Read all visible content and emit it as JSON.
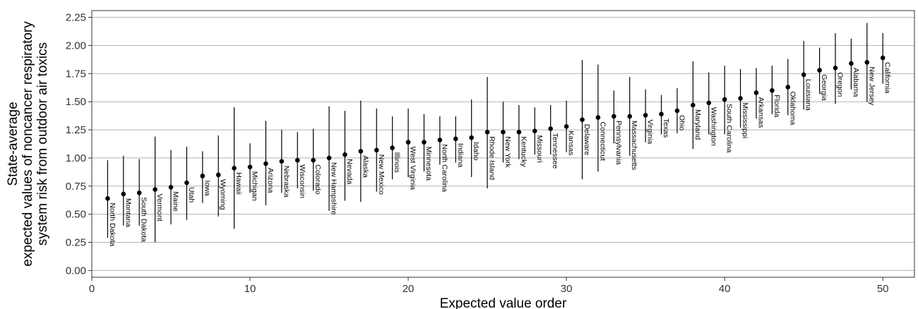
{
  "chart_data": {
    "type": "scatter",
    "subtype": "point-range",
    "xlabel": "Expected value order",
    "ylabel": [
      "State-average",
      "expected values of noncancer respiratory",
      "system risk from outdoor air toxics"
    ],
    "xlim": [
      0,
      52
    ],
    "ylim": [
      -0.06,
      2.31
    ],
    "xticks": [
      0,
      10,
      20,
      30,
      40,
      50
    ],
    "yticks": [
      "0.00",
      "0.25",
      "0.50",
      "0.75",
      "1.00",
      "1.25",
      "1.50",
      "1.75",
      "2.00",
      "2.25"
    ],
    "grid": "horizontal",
    "colors": {
      "point": "#000000",
      "line": "#000000",
      "grid": "#b3b3b3"
    },
    "points": [
      {
        "x": 1,
        "state": "North Dakota",
        "y": 0.64,
        "low": 0.29,
        "high": 0.98
      },
      {
        "x": 2,
        "state": "Montana",
        "y": 0.68,
        "low": 0.4,
        "high": 1.02
      },
      {
        "x": 3,
        "state": "South Dakota",
        "y": 0.69,
        "low": 0.4,
        "high": 0.99
      },
      {
        "x": 4,
        "state": "Vermont",
        "y": 0.72,
        "low": 0.25,
        "high": 1.19
      },
      {
        "x": 5,
        "state": "Maine",
        "y": 0.74,
        "low": 0.41,
        "high": 1.07
      },
      {
        "x": 6,
        "state": "Utah",
        "y": 0.78,
        "low": 0.45,
        "high": 1.1
      },
      {
        "x": 7,
        "state": "Iowa",
        "y": 0.84,
        "low": 0.6,
        "high": 1.06
      },
      {
        "x": 8,
        "state": "Wyoming",
        "y": 0.85,
        "low": 0.48,
        "high": 1.2
      },
      {
        "x": 9,
        "state": "Hawaii",
        "y": 0.91,
        "low": 0.37,
        "high": 1.45
      },
      {
        "x": 10,
        "state": "Michigan",
        "y": 0.92,
        "low": 0.69,
        "high": 1.13
      },
      {
        "x": 11,
        "state": "Arizona",
        "y": 0.95,
        "low": 0.58,
        "high": 1.33
      },
      {
        "x": 12,
        "state": "Nebraska",
        "y": 0.97,
        "low": 0.69,
        "high": 1.25
      },
      {
        "x": 13,
        "state": "Wisconsin",
        "y": 0.98,
        "low": 0.73,
        "high": 1.23
      },
      {
        "x": 14,
        "state": "Colorado",
        "y": 0.98,
        "low": 0.71,
        "high": 1.26
      },
      {
        "x": 15,
        "state": "New Hampshire",
        "y": 1.0,
        "low": 0.53,
        "high": 1.46
      },
      {
        "x": 16,
        "state": "Nevada",
        "y": 1.03,
        "low": 0.62,
        "high": 1.42
      },
      {
        "x": 17,
        "state": "Alaska",
        "y": 1.06,
        "low": 0.61,
        "high": 1.51
      },
      {
        "x": 18,
        "state": "New Mexico",
        "y": 1.07,
        "low": 0.7,
        "high": 1.44
      },
      {
        "x": 19,
        "state": "Illinois",
        "y": 1.09,
        "low": 0.81,
        "high": 1.37
      },
      {
        "x": 20,
        "state": "West Virginia",
        "y": 1.14,
        "low": 0.83,
        "high": 1.44
      },
      {
        "x": 21,
        "state": "Minnesota",
        "y": 1.14,
        "low": 0.88,
        "high": 1.39
      },
      {
        "x": 22,
        "state": "North Carolina",
        "y": 1.16,
        "low": 0.94,
        "high": 1.37
      },
      {
        "x": 23,
        "state": "Indiana",
        "y": 1.17,
        "low": 0.96,
        "high": 1.37
      },
      {
        "x": 24,
        "state": "Idaho",
        "y": 1.18,
        "low": 0.83,
        "high": 1.52
      },
      {
        "x": 25,
        "state": "Rhode Island",
        "y": 1.23,
        "low": 0.73,
        "high": 1.72
      },
      {
        "x": 26,
        "state": "New York",
        "y": 1.23,
        "low": 0.96,
        "high": 1.5
      },
      {
        "x": 27,
        "state": "Kentucky",
        "y": 1.23,
        "low": 0.99,
        "high": 1.47
      },
      {
        "x": 28,
        "state": "Missouri",
        "y": 1.24,
        "low": 1.03,
        "high": 1.45
      },
      {
        "x": 29,
        "state": "Tennessee",
        "y": 1.26,
        "low": 1.03,
        "high": 1.47
      },
      {
        "x": 30,
        "state": "Kansas",
        "y": 1.28,
        "low": 1.05,
        "high": 1.51
      },
      {
        "x": 31,
        "state": "Delaware",
        "y": 1.34,
        "low": 0.81,
        "high": 1.87
      },
      {
        "x": 32,
        "state": "Connecticut",
        "y": 1.36,
        "low": 0.88,
        "high": 1.83
      },
      {
        "x": 33,
        "state": "Pennsylvania",
        "y": 1.37,
        "low": 1.13,
        "high": 1.6
      },
      {
        "x": 34,
        "state": "Massachusetts",
        "y": 1.37,
        "low": 1.02,
        "high": 1.72
      },
      {
        "x": 35,
        "state": "Virginia",
        "y": 1.38,
        "low": 1.14,
        "high": 1.61
      },
      {
        "x": 36,
        "state": "Texas",
        "y": 1.39,
        "low": 1.21,
        "high": 1.56
      },
      {
        "x": 37,
        "state": "Ohio",
        "y": 1.42,
        "low": 1.22,
        "high": 1.62
      },
      {
        "x": 38,
        "state": "Maryland",
        "y": 1.47,
        "low": 1.08,
        "high": 1.86
      },
      {
        "x": 39,
        "state": "Washington",
        "y": 1.49,
        "low": 1.21,
        "high": 1.76
      },
      {
        "x": 40,
        "state": "South Carolina",
        "y": 1.52,
        "low": 1.21,
        "high": 1.82
      },
      {
        "x": 41,
        "state": "Mississippi",
        "y": 1.53,
        "low": 1.27,
        "high": 1.79
      },
      {
        "x": 42,
        "state": "Arkansas",
        "y": 1.58,
        "low": 1.35,
        "high": 1.8
      },
      {
        "x": 43,
        "state": "Florida",
        "y": 1.6,
        "low": 1.39,
        "high": 1.82
      },
      {
        "x": 44,
        "state": "Oklahoma",
        "y": 1.63,
        "low": 1.38,
        "high": 1.88
      },
      {
        "x": 45,
        "state": "Louisiana",
        "y": 1.74,
        "low": 1.43,
        "high": 2.04
      },
      {
        "x": 46,
        "state": "Georgia",
        "y": 1.78,
        "low": 1.57,
        "high": 1.98
      },
      {
        "x": 47,
        "state": "Oregon",
        "y": 1.8,
        "low": 1.48,
        "high": 2.11
      },
      {
        "x": 48,
        "state": "Alabama",
        "y": 1.84,
        "low": 1.61,
        "high": 2.06
      },
      {
        "x": 49,
        "state": "New Jersey",
        "y": 1.85,
        "low": 1.5,
        "high": 2.2
      },
      {
        "x": 50,
        "state": "California",
        "y": 1.89,
        "low": 1.66,
        "high": 2.11
      }
    ]
  }
}
